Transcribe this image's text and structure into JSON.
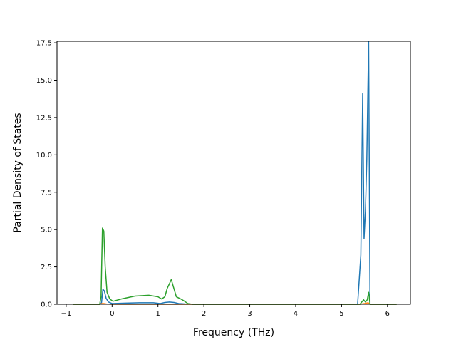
{
  "chart_data": {
    "type": "line",
    "title": "",
    "xlabel": "Frequency (THz)",
    "ylabel": "Partial Density of States",
    "xlim": [
      -1.2,
      6.5
    ],
    "ylim": [
      0,
      17.6
    ],
    "xticks": [
      -1,
      0,
      1,
      2,
      3,
      4,
      5,
      6
    ],
    "xtick_labels": [
      "−1",
      "0",
      "1",
      "2",
      "3",
      "4",
      "5",
      "6"
    ],
    "yticks": [
      0,
      2.5,
      5,
      7.5,
      10,
      12.5,
      15,
      17.5
    ],
    "ytick_labels": [
      "0.0",
      "2.5",
      "5.0",
      "7.5",
      "10.0",
      "12.5",
      "15.0",
      "17.5"
    ],
    "grid": false,
    "legend": false,
    "series": [
      {
        "color": "#1f77b4",
        "points": [
          [
            -0.85,
            0
          ],
          [
            -0.27,
            0
          ],
          [
            -0.23,
            0.1
          ],
          [
            -0.2,
            1.0
          ],
          [
            -0.17,
            0.9
          ],
          [
            -0.13,
            0.4
          ],
          [
            -0.08,
            0.15
          ],
          [
            0.0,
            0.05
          ],
          [
            0.3,
            0.08
          ],
          [
            0.6,
            0.1
          ],
          [
            0.9,
            0.1
          ],
          [
            1.05,
            0.05
          ],
          [
            1.15,
            0.12
          ],
          [
            1.25,
            0.15
          ],
          [
            1.35,
            0.12
          ],
          [
            1.45,
            0.05
          ],
          [
            1.6,
            0.02
          ],
          [
            1.8,
            0
          ],
          [
            5.35,
            0
          ],
          [
            5.42,
            3.3
          ],
          [
            5.46,
            14.1
          ],
          [
            5.49,
            4.4
          ],
          [
            5.52,
            6.2
          ],
          [
            5.55,
            9.7
          ],
          [
            5.59,
            17.8
          ],
          [
            5.62,
            0
          ],
          [
            6.2,
            0
          ]
        ]
      },
      {
        "color": "#ff7f0e",
        "points": [
          [
            -0.85,
            0
          ],
          [
            -0.27,
            0
          ],
          [
            -0.22,
            0.05
          ],
          [
            -0.18,
            0.05
          ],
          [
            -0.12,
            0.02
          ],
          [
            0.0,
            0
          ],
          [
            5.4,
            0
          ],
          [
            5.5,
            0.05
          ],
          [
            5.58,
            0.1
          ],
          [
            5.62,
            0
          ],
          [
            6.2,
            0
          ]
        ]
      },
      {
        "color": "#2ca02c",
        "points": [
          [
            -0.85,
            0
          ],
          [
            -0.27,
            0
          ],
          [
            -0.24,
            0.5
          ],
          [
            -0.21,
            5.1
          ],
          [
            -0.18,
            4.9
          ],
          [
            -0.15,
            2.5
          ],
          [
            -0.11,
            0.8
          ],
          [
            -0.05,
            0.35
          ],
          [
            0.02,
            0.2
          ],
          [
            0.2,
            0.35
          ],
          [
            0.5,
            0.55
          ],
          [
            0.8,
            0.6
          ],
          [
            1.0,
            0.5
          ],
          [
            1.08,
            0.35
          ],
          [
            1.15,
            0.5
          ],
          [
            1.2,
            1.05
          ],
          [
            1.29,
            1.65
          ],
          [
            1.4,
            0.5
          ],
          [
            1.5,
            0.35
          ],
          [
            1.58,
            0.2
          ],
          [
            1.65,
            0.05
          ],
          [
            1.75,
            0
          ],
          [
            5.4,
            0
          ],
          [
            5.48,
            0.3
          ],
          [
            5.52,
            0.15
          ],
          [
            5.56,
            0.3
          ],
          [
            5.59,
            0.8
          ],
          [
            5.62,
            0
          ],
          [
            6.2,
            0
          ]
        ]
      }
    ]
  }
}
